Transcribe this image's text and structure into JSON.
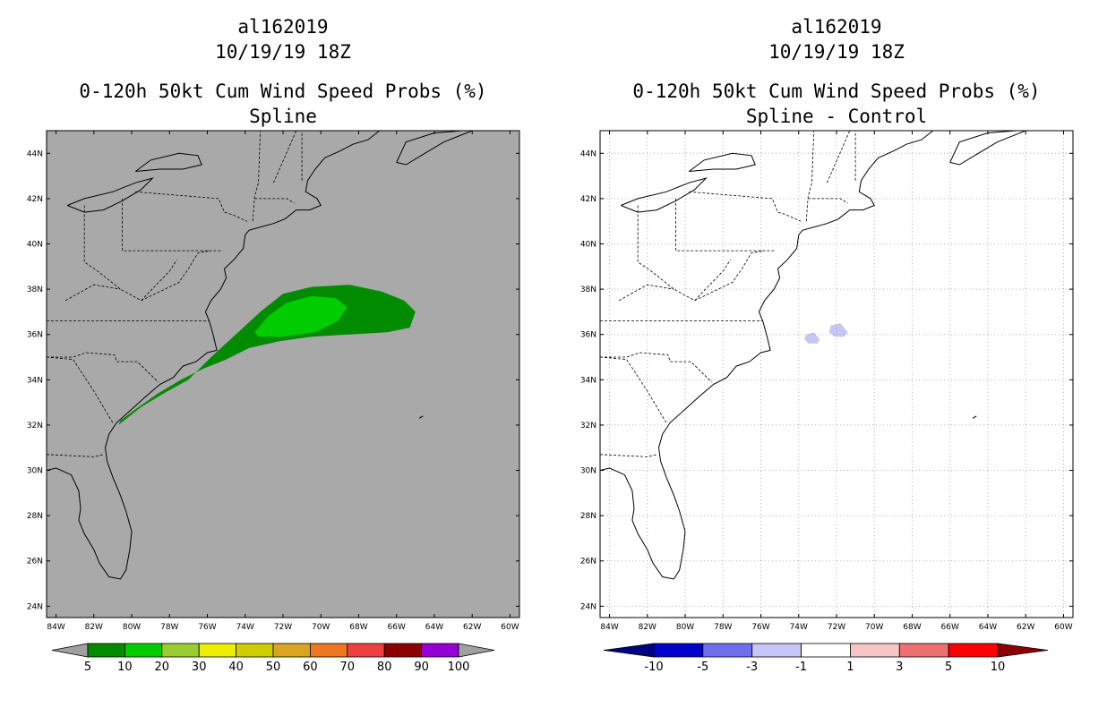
{
  "panels": [
    {
      "title_lines": [
        "al162019",
        "10/19/19 18Z"
      ],
      "subtitle_lines": [
        "0-120h 50kt Cum Wind Speed Probs (%)",
        "Spline"
      ],
      "map_background": "#a9a9a9"
    },
    {
      "title_lines": [
        "al162019",
        "10/19/19 18Z"
      ],
      "subtitle_lines": [
        "0-120h 50kt Cum Wind Speed Probs (%)",
        "Spline - Control"
      ],
      "map_background": "#ffffff"
    }
  ],
  "chart_data": [
    {
      "type": "heatmap",
      "map": "US East Coast / western Atlantic",
      "lon_ticks": [
        "84W",
        "82W",
        "80W",
        "78W",
        "76W",
        "74W",
        "72W",
        "70W",
        "68W",
        "66W",
        "64W",
        "62W",
        "60W"
      ],
      "lat_ticks": [
        "24N",
        "26N",
        "28N",
        "30N",
        "32N",
        "34N",
        "36N",
        "38N",
        "40N",
        "42N",
        "44N"
      ],
      "xlim": [
        -84.5,
        -59.5
      ],
      "ylim": [
        23.5,
        45
      ],
      "grid": false,
      "colorbar": {
        "labels": [
          "5",
          "10",
          "20",
          "30",
          "40",
          "50",
          "60",
          "70",
          "80",
          "90",
          "100"
        ],
        "colors": [
          "#008b00",
          "#00cd00",
          "#9acd32",
          "#eeee00",
          "#cdcd00",
          "#daa520",
          "#ee7621",
          "#ee4040",
          "#8b0000",
          "#9400d3"
        ],
        "end_color": "#a0a0a0"
      },
      "contours": [
        {
          "level": "5-10",
          "color": "#008b00",
          "lonlat": [
            [
              -80.7,
              32.0
            ],
            [
              -79.5,
              32.8
            ],
            [
              -78.3,
              33.4
            ],
            [
              -77.0,
              34.0
            ],
            [
              -75.8,
              35.0
            ],
            [
              -74.5,
              36.0
            ],
            [
              -73.2,
              37.0
            ],
            [
              -72.0,
              37.8
            ],
            [
              -70.5,
              38.1
            ],
            [
              -68.5,
              38.2
            ],
            [
              -66.8,
              37.9
            ],
            [
              -65.6,
              37.5
            ],
            [
              -65.0,
              37.0
            ],
            [
              -65.3,
              36.3
            ],
            [
              -66.5,
              36.1
            ],
            [
              -68.5,
              36.0
            ],
            [
              -70.5,
              35.9
            ],
            [
              -72.2,
              35.7
            ],
            [
              -73.8,
              35.4
            ],
            [
              -75.0,
              34.9
            ],
            [
              -76.2,
              34.5
            ],
            [
              -77.4,
              34.0
            ],
            [
              -78.6,
              33.4
            ],
            [
              -79.8,
              32.7
            ],
            [
              -80.6,
              32.2
            ]
          ]
        },
        {
          "level": "10-20",
          "color": "#00cd00",
          "lonlat": [
            [
              -73.5,
              36.1
            ],
            [
              -72.8,
              36.8
            ],
            [
              -71.8,
              37.4
            ],
            [
              -70.5,
              37.7
            ],
            [
              -69.2,
              37.6
            ],
            [
              -68.6,
              37.2
            ],
            [
              -69.1,
              36.6
            ],
            [
              -70.3,
              36.1
            ],
            [
              -72.0,
              35.9
            ],
            [
              -73.3,
              35.9
            ]
          ]
        }
      ]
    },
    {
      "type": "heatmap",
      "map": "US East Coast / western Atlantic",
      "lon_ticks": [
        "84W",
        "82W",
        "80W",
        "78W",
        "76W",
        "74W",
        "72W",
        "70W",
        "68W",
        "66W",
        "64W",
        "62W",
        "60W"
      ],
      "lat_ticks": [
        "24N",
        "26N",
        "28N",
        "30N",
        "32N",
        "34N",
        "36N",
        "38N",
        "40N",
        "42N",
        "44N"
      ],
      "xlim": [
        -84.5,
        -59.5
      ],
      "ylim": [
        23.5,
        45
      ],
      "grid": true,
      "colorbar": {
        "labels": [
          "-10",
          "-5",
          "-3",
          "-1",
          "1",
          "3",
          "5",
          "10"
        ],
        "colors": [
          "#0000cd",
          "#6f6fee",
          "#c5c5f6",
          "#ffffff",
          "#f6c5c5",
          "#ee6f6f",
          "#ff0000"
        ],
        "low_end_color": "#000080",
        "high_end_color": "#8b0000"
      },
      "contours": [
        {
          "level": "-3 to -1",
          "color": "#c5c5f6",
          "lonlat": [
            [
              -73.6,
              36.0
            ],
            [
              -73.2,
              36.1
            ],
            [
              -72.9,
              35.8
            ],
            [
              -73.0,
              35.6
            ],
            [
              -73.5,
              35.6
            ],
            [
              -73.7,
              35.8
            ]
          ]
        },
        {
          "level": "-3 to -1",
          "color": "#c5c5f6",
          "lonlat": [
            [
              -72.3,
              36.4
            ],
            [
              -71.8,
              36.5
            ],
            [
              -71.4,
              36.1
            ],
            [
              -71.6,
              35.9
            ],
            [
              -72.1,
              35.9
            ],
            [
              -72.4,
              36.1
            ]
          ]
        }
      ]
    }
  ]
}
